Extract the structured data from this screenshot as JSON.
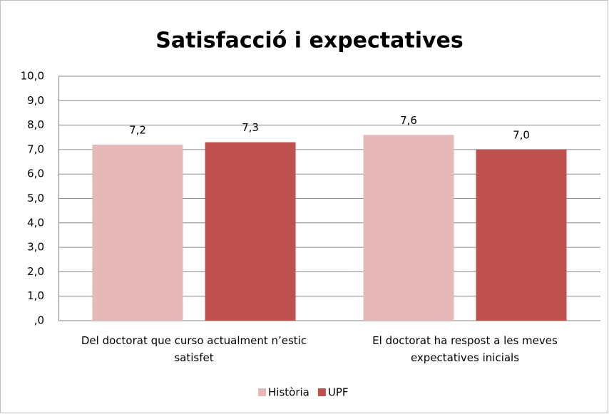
{
  "chart_data": {
    "type": "bar",
    "title": "Satisfacció i expectatives",
    "categories": [
      "Del doctorat que curso actualment n’estic satisfet",
      "El doctorat ha respost a les meves expectatives inicials"
    ],
    "series": [
      {
        "name": "Història",
        "color": "#e6b8b7",
        "values": [
          7.2,
          7.6
        ],
        "value_labels": [
          "7,2",
          "7,6"
        ]
      },
      {
        "name": "UPF",
        "color": "#c0504d",
        "values": [
          7.3,
          7.0
        ],
        "value_labels": [
          "7,3",
          "7,0"
        ]
      }
    ],
    "ylim": [
      0,
      10
    ],
    "yticks": [
      {
        "value": 0,
        "label": ",0"
      },
      {
        "value": 1,
        "label": "1,0"
      },
      {
        "value": 2,
        "label": "2,0"
      },
      {
        "value": 3,
        "label": "3,0"
      },
      {
        "value": 4,
        "label": "4,0"
      },
      {
        "value": 5,
        "label": "5,0"
      },
      {
        "value": 6,
        "label": "6,0"
      },
      {
        "value": 7,
        "label": "7,0"
      },
      {
        "value": 8,
        "label": "8,0"
      },
      {
        "value": 9,
        "label": "9,0"
      },
      {
        "value": 10,
        "label": "10,0"
      }
    ],
    "grid": true,
    "legend": "bottom"
  }
}
